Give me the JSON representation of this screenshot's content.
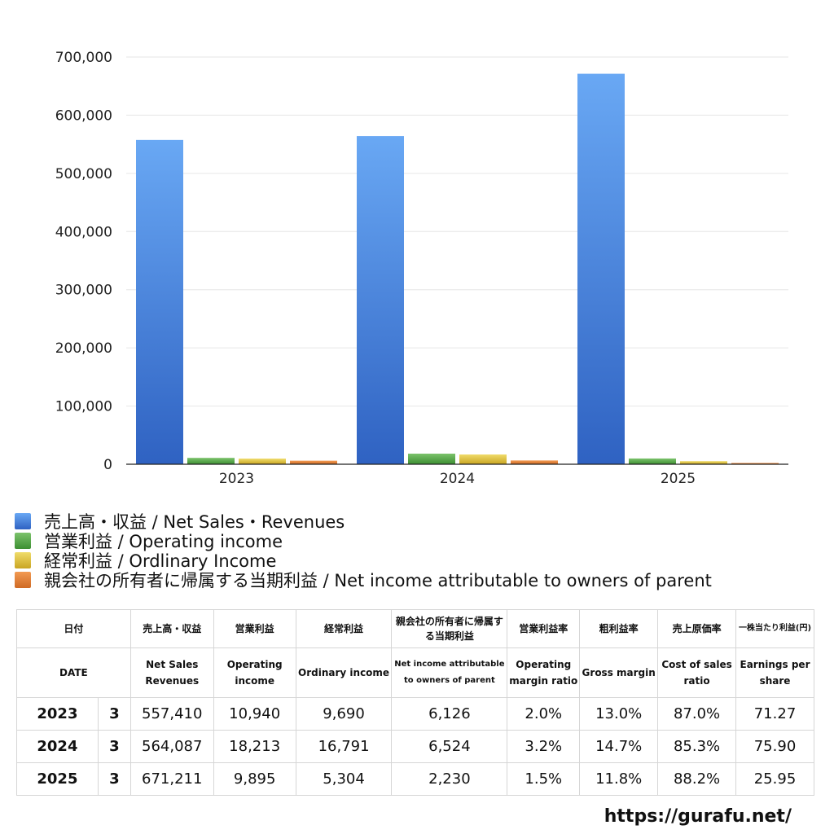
{
  "chart_data": {
    "type": "bar",
    "categories": [
      "2023",
      "2024",
      "2025"
    ],
    "series": [
      {
        "name": "売上高・収益 / Net Sales・Revenues",
        "values": [
          557410,
          564087,
          671211
        ],
        "color_top": "#69a8f4",
        "color_bottom": "#2f62c2"
      },
      {
        "name": "営業利益 / Operating income",
        "values": [
          10940,
          18213,
          9895
        ],
        "color_top": "#7cc36c",
        "color_bottom": "#3d8f32"
      },
      {
        "name": "経常利益 / Ordlinary Income",
        "values": [
          9690,
          16791,
          5304
        ],
        "color_top": "#f0dc6a",
        "color_bottom": "#c9a522"
      },
      {
        "name": "親会社の所有者に帰属する当期利益 / Net income attributable to owners of parent",
        "values": [
          6126,
          6524,
          2230
        ],
        "color_top": "#f29a52",
        "color_bottom": "#cf6a24"
      }
    ],
    "ylim": [
      0,
      700000
    ],
    "yticks": [
      "0",
      "100,000",
      "200,000",
      "300,000",
      "400,000",
      "500,000",
      "600,000",
      "700,000"
    ],
    "grid": true,
    "legend_placement": "bottom-left"
  },
  "table": {
    "header_jp": [
      "日付",
      "売上高・収益",
      "営業利益",
      "経常利益",
      "親会社の所有者に帰属する当期利益",
      "営業利益率",
      "粗利益率",
      "売上原価率",
      "一株当たり利益(円)"
    ],
    "header_en": [
      "DATE",
      "Net Sales Revenues",
      "Operating income",
      "Ordinary income",
      "Net income attributable to owners of parent",
      "Operating margin ratio",
      "Gross margin",
      "Cost of sales ratio",
      "Earnings per share"
    ],
    "rows": [
      {
        "year": "2023",
        "month": "3",
        "sales": "557,410",
        "op": "10,940",
        "ord": "9,690",
        "net": "6,126",
        "opm": "2.0%",
        "gm": "13.0%",
        "cos": "87.0%",
        "eps": "71.27"
      },
      {
        "year": "2024",
        "month": "3",
        "sales": "564,087",
        "op": "18,213",
        "ord": "16,791",
        "net": "6,524",
        "opm": "3.2%",
        "gm": "14.7%",
        "cos": "85.3%",
        "eps": "75.90"
      },
      {
        "year": "2025",
        "month": "3",
        "sales": "671,211",
        "op": "9,895",
        "ord": "5,304",
        "net": "2,230",
        "opm": "1.5%",
        "gm": "11.8%",
        "cos": "88.2%",
        "eps": "25.95"
      }
    ]
  },
  "footer": {
    "url": "https://gurafu.net/"
  }
}
